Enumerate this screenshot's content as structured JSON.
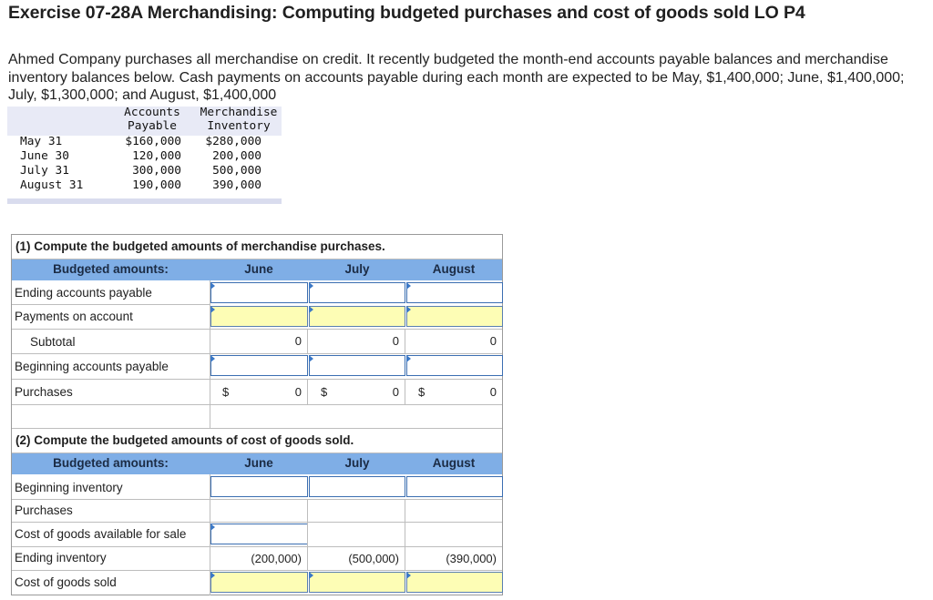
{
  "title": "Exercise 07-28A Merchandising: Computing budgeted purchases and cost of goods sold LO P4",
  "intro": "Ahmed Company purchases all merchandise on credit. It recently budgeted the month-end accounts payable balances and merchandise inventory balances below. Cash payments on accounts payable during each month are expected to be May, $1,400,000; June, $1,400,000; July, $1,300,000; and August, $1,400,000",
  "given_table": {
    "col1_head": [
      "Accounts",
      "Payable"
    ],
    "col2_head": [
      "Merchandise",
      "Inventory"
    ],
    "rows": [
      {
        "label": "May 31",
        "ap": "$160,000",
        "inv": "$280,000"
      },
      {
        "label": "June 30",
        "ap": "120,000",
        "inv": "200,000"
      },
      {
        "label": "July 31",
        "ap": "300,000",
        "inv": "500,000"
      },
      {
        "label": "August 31",
        "ap": "190,000",
        "inv": "390,000"
      }
    ]
  },
  "part1": {
    "title": "(1) Compute the budgeted amounts of merchandise purchases.",
    "header": {
      "label": "Budgeted amounts:",
      "june": "June",
      "july": "July",
      "august": "August"
    },
    "rows": {
      "ending_ap": "Ending accounts payable",
      "payments": "Payments on account",
      "subtotal": "Subtotal",
      "beginning_ap": "Beginning accounts payable",
      "purchases": "Purchases"
    },
    "subtotal_values": [
      "0",
      "0",
      "0"
    ],
    "purchases_values": [
      "0",
      "0",
      "0"
    ],
    "dollar": "$"
  },
  "part2": {
    "title": "(2) Compute the budgeted amounts of cost of goods sold.",
    "header": {
      "label": "Budgeted amounts:",
      "june": "June",
      "july": "July",
      "august": "August"
    },
    "rows": {
      "beginning_inv": "Beginning inventory",
      "purchases": "Purchases",
      "available": "Cost of goods available for sale",
      "ending_inv": "Ending inventory",
      "cogs": "Cost of goods sold"
    },
    "ending_inv_values": [
      "(200,000)",
      "(500,000)",
      "(390,000)"
    ]
  }
}
